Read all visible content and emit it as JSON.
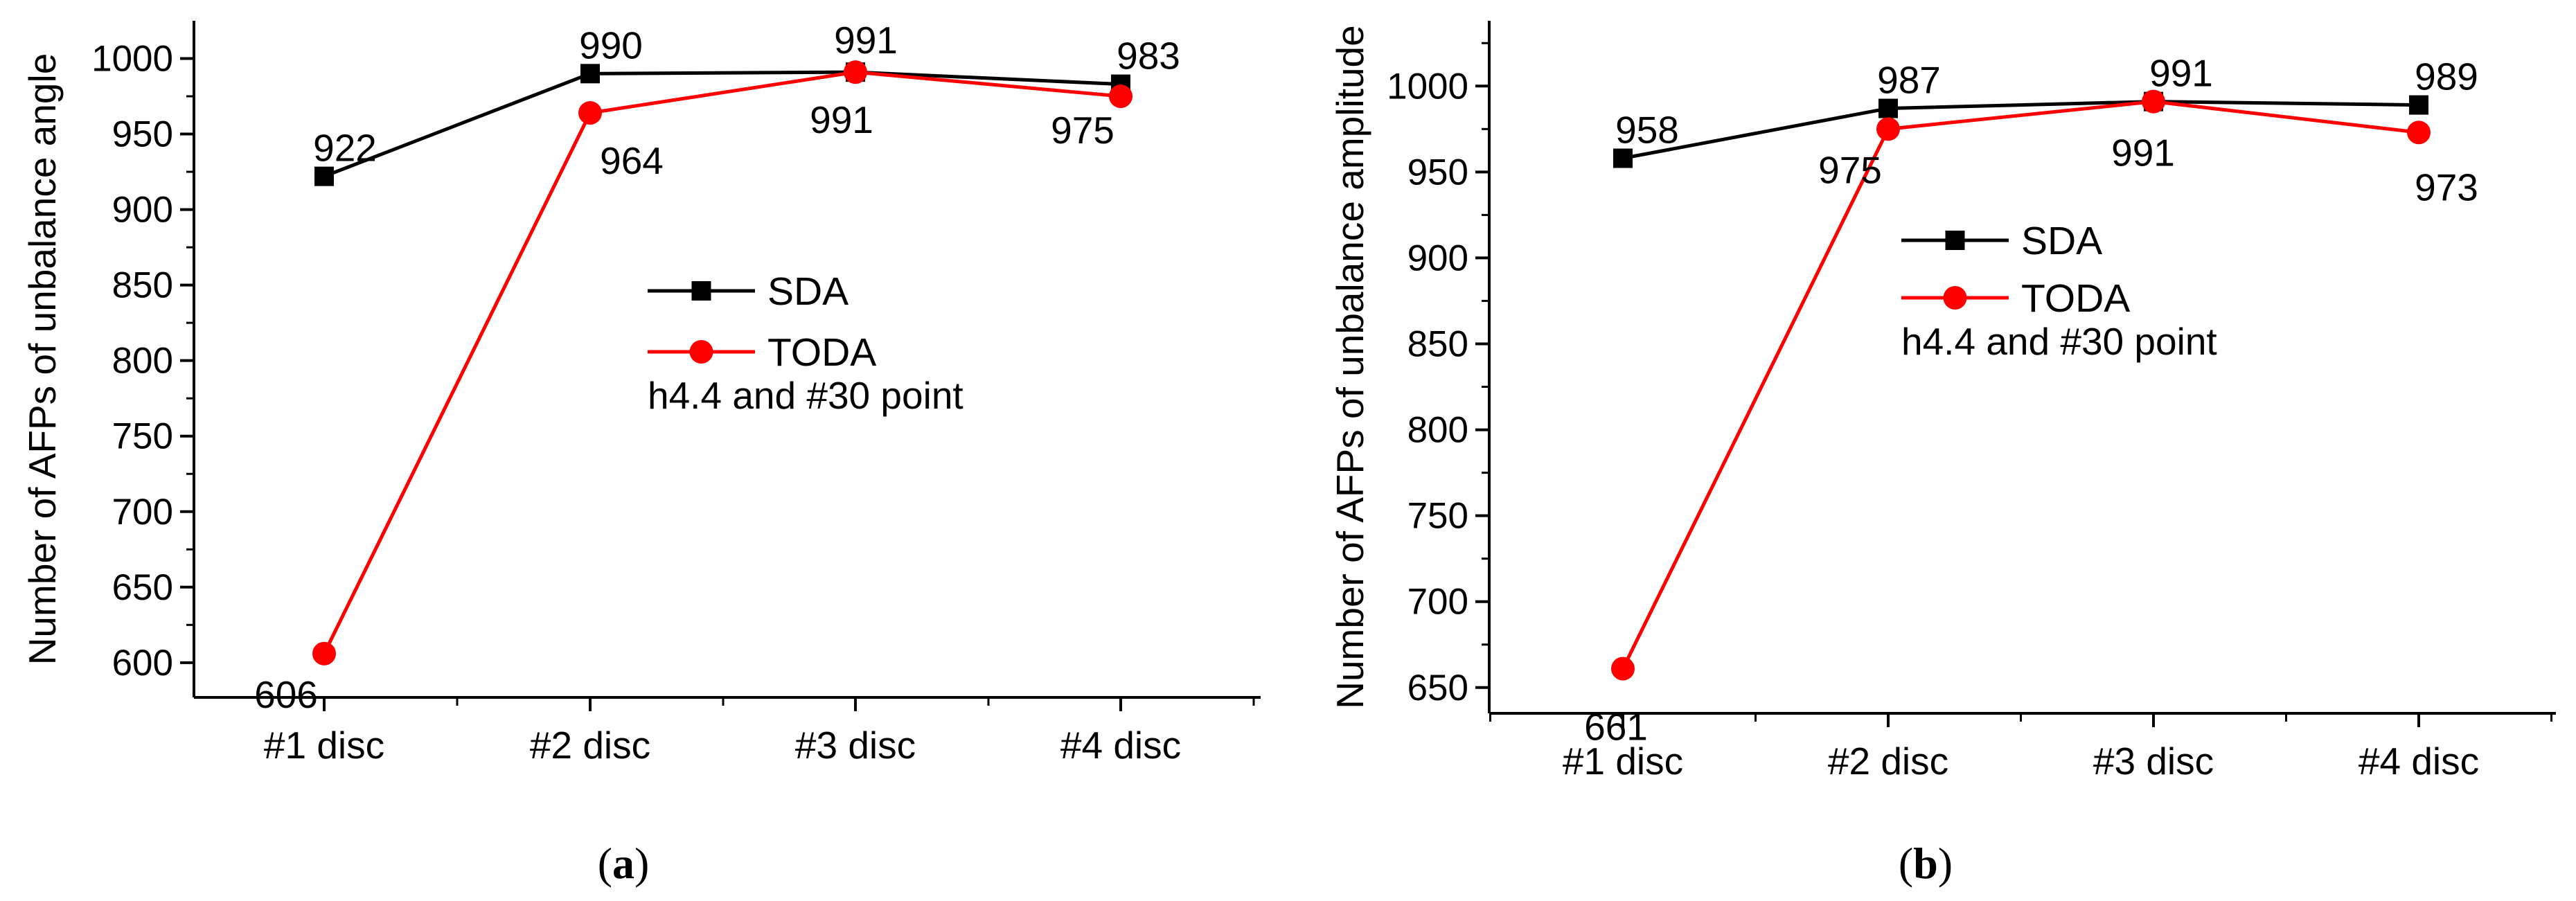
{
  "chart_data": [
    {
      "type": "line",
      "panel_label": "a",
      "caption_open": "(",
      "caption_close": ")",
      "categories": [
        "#1 disc",
        "#2 disc",
        "#3 disc",
        "#4 disc"
      ],
      "ylabel": "Number of AFPs of unbalance angle",
      "xlabel": "",
      "ylim": [
        577,
        1025
      ],
      "yticks": [
        600,
        650,
        700,
        750,
        800,
        850,
        900,
        950,
        1000
      ],
      "grid": false,
      "legend_position": "center-right",
      "annotation": "h4.4 and #30 point",
      "series": [
        {
          "name": "SDA",
          "color": "#000000",
          "marker": "square",
          "values": [
            922,
            990,
            991,
            983
          ],
          "labels": [
            "922",
            "990",
            "991",
            "983"
          ]
        },
        {
          "name": "TODA",
          "color": "#ff0000",
          "marker": "circle",
          "values": [
            606,
            964,
            991,
            975
          ],
          "labels": [
            "606",
            "964",
            "991",
            "975"
          ]
        }
      ]
    },
    {
      "type": "line",
      "panel_label": "b",
      "caption_open": "(",
      "caption_close": ")",
      "categories": [
        "#1 disc",
        "#2 disc",
        "#3 disc",
        "#4 disc"
      ],
      "ylabel": "Number of AFPs of unbalance amplitude",
      "xlabel": "",
      "ylim": [
        635,
        1038
      ],
      "yticks": [
        650,
        700,
        750,
        800,
        850,
        900,
        950,
        1000
      ],
      "grid": false,
      "legend_position": "top-right",
      "annotation": "h4.4 and #30 point",
      "series": [
        {
          "name": "SDA",
          "color": "#000000",
          "marker": "square",
          "values": [
            958,
            987,
            991,
            989
          ],
          "labels": [
            "958",
            "987",
            "991",
            "989"
          ]
        },
        {
          "name": "TODA",
          "color": "#ff0000",
          "marker": "circle",
          "values": [
            661,
            975,
            991,
            973
          ],
          "labels": [
            "661",
            "975",
            "991",
            "973"
          ]
        }
      ]
    }
  ]
}
